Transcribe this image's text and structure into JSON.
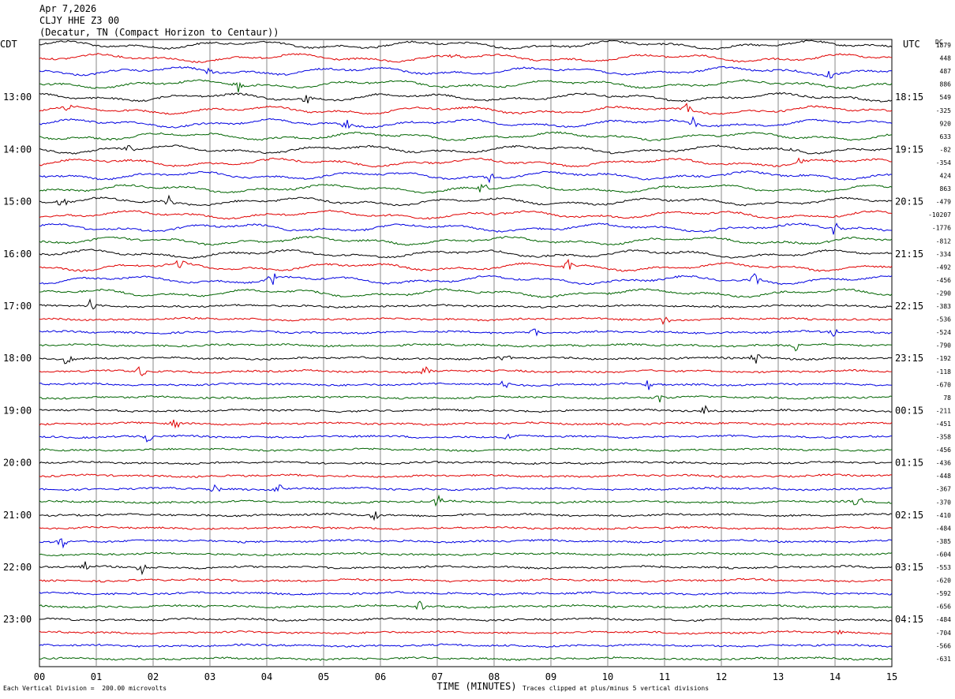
{
  "header": {
    "date": "Apr 7,2026",
    "station": "CLJY HHE Z3 00",
    "location": "(Decatur, TN (Compact Horizon to Centaur))"
  },
  "left_tz": "CDT",
  "right_tz": "UTC",
  "dc_label": "DC",
  "footer": {
    "scale": "Each Vertical Division =  200.00 microvolts",
    "clip": "Traces clipped at plus/minus 5 vertical divisions"
  },
  "chart_data": {
    "type": "line",
    "title": "CLJY HHE Z3 00",
    "xlabel": "TIME (MINUTES)",
    "x_ticks": [
      "00",
      "01",
      "02",
      "03",
      "04",
      "05",
      "06",
      "07",
      "08",
      "09",
      "10",
      "11",
      "12",
      "13",
      "14",
      "15"
    ],
    "x_range": [
      0,
      15
    ],
    "trace_colors": [
      "#000000",
      "#e00000",
      "#0000e0",
      "#006400"
    ],
    "left_hour_labels": [
      "13:00",
      "14:00",
      "15:00",
      "16:00",
      "17:00",
      "18:00",
      "19:00",
      "20:00",
      "21:00",
      "22:00",
      "23:00"
    ],
    "right_hour_labels": [
      "18:15",
      "19:15",
      "20:15",
      "21:15",
      "22:15",
      "23:15",
      "00:15",
      "01:15",
      "02:15",
      "03:15",
      "04:15"
    ],
    "dc_offsets": [
      "1879",
      "448",
      "487",
      "886",
      "549",
      "-325",
      "920",
      "633",
      "-82",
      "-354",
      "424",
      "863",
      "-479",
      "-10207",
      "-1776",
      "-812",
      "-334",
      "-492",
      "-456",
      "-290",
      "-383",
      "-536",
      "-524",
      "-790",
      "-192",
      "-118",
      "-670",
      "78",
      "-211",
      "-451",
      "-358",
      "-456",
      "-436",
      "-448",
      "-367",
      "-370",
      "-410",
      "-484",
      "-385",
      "-604",
      "-553",
      "-620",
      "-592",
      "-656",
      "-484",
      "-704",
      "-566",
      "-631"
    ],
    "events": [
      {
        "trace": 1,
        "minute": 7.3
      },
      {
        "trace": 2,
        "minute": 3.0
      },
      {
        "trace": 2,
        "minute": 13.9
      },
      {
        "trace": 3,
        "minute": 3.5
      },
      {
        "trace": 4,
        "minute": 4.7
      },
      {
        "trace": 5,
        "minute": 0.5
      },
      {
        "trace": 5,
        "minute": 11.4
      },
      {
        "trace": 6,
        "minute": 5.4
      },
      {
        "trace": 6,
        "minute": 11.5
      },
      {
        "trace": 8,
        "minute": 1.6
      },
      {
        "trace": 8,
        "minute": 13.3
      },
      {
        "trace": 9,
        "minute": 13.4
      },
      {
        "trace": 10,
        "minute": 7.9
      },
      {
        "trace": 11,
        "minute": 7.8
      },
      {
        "trace": 12,
        "minute": 0.4
      },
      {
        "trace": 12,
        "minute": 2.3
      },
      {
        "trace": 14,
        "minute": 14.0
      },
      {
        "trace": 17,
        "minute": 2.5
      },
      {
        "trace": 17,
        "minute": 9.3
      },
      {
        "trace": 18,
        "minute": 4.1
      },
      {
        "trace": 18,
        "minute": 12.6
      },
      {
        "trace": 20,
        "minute": 0.9
      },
      {
        "trace": 21,
        "minute": 11.0
      },
      {
        "trace": 22,
        "minute": 8.7
      },
      {
        "trace": 22,
        "minute": 14.0
      },
      {
        "trace": 23,
        "minute": 13.3
      },
      {
        "trace": 24,
        "minute": 0.5
      },
      {
        "trace": 24,
        "minute": 8.2
      },
      {
        "trace": 24,
        "minute": 12.6
      },
      {
        "trace": 25,
        "minute": 1.8
      },
      {
        "trace": 25,
        "minute": 6.8
      },
      {
        "trace": 26,
        "minute": 8.2
      },
      {
        "trace": 26,
        "minute": 10.7
      },
      {
        "trace": 27,
        "minute": 10.9
      },
      {
        "trace": 28,
        "minute": 11.7
      },
      {
        "trace": 29,
        "minute": 2.4
      },
      {
        "trace": 30,
        "minute": 1.9
      },
      {
        "trace": 30,
        "minute": 8.2
      },
      {
        "trace": 34,
        "minute": 3.1
      },
      {
        "trace": 34,
        "minute": 4.2
      },
      {
        "trace": 35,
        "minute": 7.0
      },
      {
        "trace": 35,
        "minute": 14.4
      },
      {
        "trace": 36,
        "minute": 5.9
      },
      {
        "trace": 38,
        "minute": 0.4
      },
      {
        "trace": 40,
        "minute": 0.8
      },
      {
        "trace": 40,
        "minute": 1.8
      },
      {
        "trace": 43,
        "minute": 6.7
      },
      {
        "trace": 45,
        "minute": 14.1
      }
    ]
  }
}
